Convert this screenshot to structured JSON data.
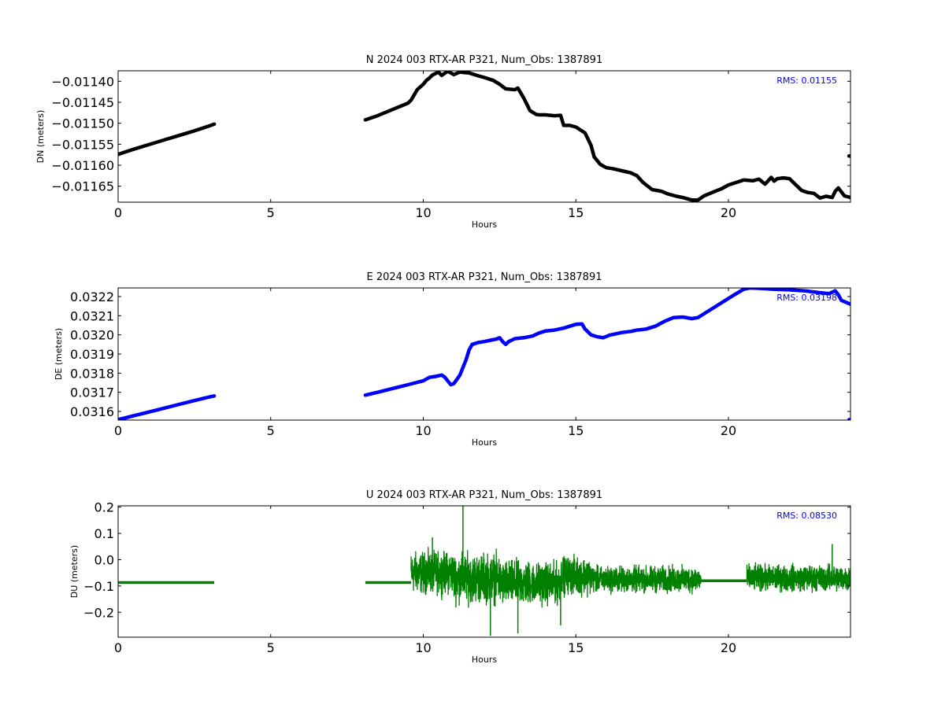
{
  "chart_data": [
    {
      "type": "line",
      "title": "N 2024 003 RTX-AR  P321, Num_Obs: 1387891",
      "xlabel": "Hours",
      "ylabel": "DN (meters)",
      "rms": "RMS:  0.01155",
      "color": "#000000",
      "xlim": [
        0,
        24
      ],
      "ylim": [
        -0.011688,
        -0.011375
      ],
      "xticks": [
        0,
        5,
        10,
        15,
        20
      ],
      "yticks": [
        -0.0114,
        -0.01145,
        -0.0115,
        -0.01155,
        -0.0116,
        -0.01165
      ],
      "ytick_labels": [
        "−0.01140",
        "−0.01145",
        "−0.01150",
        "−0.01155",
        "−0.01160",
        "−0.01165"
      ],
      "grid": false,
      "series": [
        {
          "x": [
            0.0,
            0.5,
            1.0,
            1.5,
            2.0,
            2.5,
            3.0,
            3.15
          ],
          "y": [
            -0.011574,
            -0.011562,
            -0.011551,
            -0.01154,
            -0.011529,
            -0.011518,
            -0.011506,
            -0.011502
          ]
        },
        {
          "x": [
            8.1,
            8.5,
            9.0,
            9.5,
            9.6,
            9.8,
            10.0,
            10.1,
            10.2,
            10.3,
            10.5,
            10.6,
            10.8,
            11.0,
            11.2,
            11.5,
            11.8,
            12.0,
            12.3,
            12.5,
            12.7,
            13.0,
            13.1,
            13.3,
            13.5,
            13.7,
            13.8,
            14.0,
            14.3,
            14.5,
            14.6,
            14.8,
            15.0,
            15.3,
            15.5,
            15.6,
            15.8,
            16.0,
            16.2,
            16.5,
            16.8,
            17.0,
            17.2,
            17.5,
            17.8,
            18.0,
            18.3,
            18.5,
            18.8,
            19.0,
            19.2,
            19.5,
            19.8,
            20.0,
            20.3,
            20.5,
            20.8,
            21.0,
            21.2,
            21.4,
            21.5,
            21.6,
            21.8,
            22.0,
            22.2,
            22.4,
            22.6,
            22.8,
            23.0,
            23.2,
            23.4,
            23.5,
            23.6,
            23.8,
            24.0
          ],
          "y": [
            -0.011492,
            -0.011482,
            -0.011467,
            -0.011452,
            -0.011445,
            -0.01142,
            -0.011407,
            -0.011398,
            -0.011392,
            -0.011385,
            -0.011378,
            -0.011386,
            -0.011376,
            -0.011384,
            -0.011378,
            -0.01138,
            -0.011387,
            -0.011391,
            -0.011398,
            -0.011407,
            -0.011418,
            -0.01142,
            -0.011416,
            -0.011441,
            -0.01147,
            -0.011479,
            -0.01148,
            -0.01148,
            -0.011482,
            -0.011481,
            -0.011505,
            -0.011505,
            -0.011509,
            -0.011523,
            -0.011553,
            -0.01158,
            -0.011598,
            -0.011606,
            -0.011608,
            -0.011613,
            -0.011618,
            -0.011625,
            -0.011641,
            -0.011658,
            -0.011662,
            -0.011668,
            -0.011674,
            -0.011677,
            -0.011683,
            -0.011683,
            -0.011673,
            -0.011664,
            -0.011655,
            -0.011647,
            -0.01164,
            -0.011635,
            -0.011637,
            -0.011633,
            -0.011645,
            -0.011629,
            -0.011638,
            -0.011632,
            -0.01163,
            -0.011632,
            -0.011646,
            -0.01166,
            -0.011665,
            -0.011667,
            -0.011678,
            -0.011674,
            -0.011677,
            -0.011662,
            -0.011654,
            -0.011673,
            -0.011677
          ]
        },
        {
          "x": [
            23.95,
            24.0
          ],
          "y": [
            -0.011578,
            -0.011578
          ]
        }
      ]
    },
    {
      "type": "line",
      "title": "E 2024 003 RTX-AR  P321, Num_Obs: 1387891",
      "xlabel": "Hours",
      "ylabel": "DE (meters)",
      "rms": "RMS:  0.03198",
      "color": "#0000ff",
      "xlim": [
        0,
        24
      ],
      "ylim": [
        0.031555,
        0.032245
      ],
      "xticks": [
        0,
        5,
        10,
        15,
        20
      ],
      "yticks": [
        0.0316,
        0.0317,
        0.0318,
        0.0319,
        0.032,
        0.0321,
        0.0322
      ],
      "ytick_labels": [
        "0.0316",
        "0.0317",
        "0.0318",
        "0.0319",
        "0.0320",
        "0.0321",
        "0.0322"
      ],
      "grid": false,
      "series": [
        {
          "x": [
            0.0,
            0.5,
            1.0,
            1.5,
            2.0,
            2.5,
            3.0,
            3.15
          ],
          "y": [
            0.031557,
            0.031577,
            0.031597,
            0.031617,
            0.031637,
            0.031657,
            0.031676,
            0.031681
          ]
        },
        {
          "x": [
            8.1,
            8.5,
            9.0,
            9.5,
            10.0,
            10.2,
            10.4,
            10.6,
            10.7,
            10.8,
            10.9,
            11.0,
            11.2,
            11.4,
            11.5,
            11.6,
            11.8,
            12.0,
            12.2,
            12.4,
            12.5,
            12.6,
            12.7,
            12.8,
            13.0,
            13.3,
            13.6,
            13.8,
            14.0,
            14.3,
            14.6,
            14.8,
            15.0,
            15.2,
            15.3,
            15.5,
            15.7,
            15.9,
            16.1,
            16.3,
            16.5,
            16.8,
            17.0,
            17.3,
            17.6,
            17.9,
            18.2,
            18.5,
            18.8,
            19.0,
            19.3,
            19.6,
            19.9,
            20.2,
            20.5,
            20.7,
            21.0,
            21.5,
            22.0,
            22.5,
            23.0,
            23.3,
            23.5,
            23.6,
            23.7,
            24.0
          ],
          "y": [
            0.031685,
            0.0317,
            0.03172,
            0.03174,
            0.03176,
            0.031778,
            0.031783,
            0.03179,
            0.03178,
            0.03176,
            0.03174,
            0.031745,
            0.03179,
            0.03187,
            0.03192,
            0.03195,
            0.03196,
            0.031965,
            0.031972,
            0.031978,
            0.031985,
            0.031965,
            0.03195,
            0.031965,
            0.03198,
            0.031985,
            0.031995,
            0.03201,
            0.03202,
            0.032025,
            0.032035,
            0.032045,
            0.032055,
            0.032057,
            0.03203,
            0.032,
            0.03199,
            0.031985,
            0.031998,
            0.032005,
            0.032012,
            0.032018,
            0.032025,
            0.03203,
            0.032045,
            0.03207,
            0.03209,
            0.032093,
            0.032085,
            0.03209,
            0.03212,
            0.03215,
            0.03218,
            0.03221,
            0.032238,
            0.032245,
            0.032243,
            0.032238,
            0.032235,
            0.03223,
            0.03222,
            0.032215,
            0.03223,
            0.03221,
            0.03218,
            0.03216
          ]
        },
        {
          "x": [
            23.95,
            24.0
          ],
          "y": [
            0.031557,
            0.031557
          ]
        }
      ]
    },
    {
      "type": "line",
      "title": "U 2024 003 RTX-AR  P321, Num_Obs: 1387891",
      "xlabel": "Hours",
      "ylabel": "DU (meters)",
      "rms": "RMS:  0.08530",
      "color": "#008000",
      "xlim": [
        0,
        24
      ],
      "ylim": [
        -0.295,
        0.205
      ],
      "xticks": [
        0,
        5,
        10,
        15,
        20
      ],
      "yticks": [
        0.2,
        0.1,
        0.0,
        -0.1,
        -0.2
      ],
      "ytick_labels": [
        "0.2",
        "0.1",
        "0.0",
        "−0.1",
        "−0.2"
      ],
      "grid": false,
      "flat_segments": [
        {
          "x": [
            0.0,
            3.15
          ],
          "y": -0.087
        },
        {
          "x": [
            8.1,
            9.6
          ],
          "y": -0.087
        },
        {
          "x": [
            19.1,
            20.6
          ],
          "y": -0.08
        }
      ],
      "noisy_segments": [
        {
          "x": [
            9.6,
            11.0
          ],
          "mean": -0.05,
          "amp": 0.11
        },
        {
          "x": [
            11.0,
            12.5
          ],
          "mean": -0.07,
          "amp": 0.13
        },
        {
          "x": [
            12.5,
            13.5
          ],
          "mean": -0.09,
          "amp": 0.12
        },
        {
          "x": [
            13.5,
            14.5
          ],
          "mean": -0.09,
          "amp": 0.11
        },
        {
          "x": [
            14.5,
            15.5
          ],
          "mean": -0.06,
          "amp": 0.1
        },
        {
          "x": [
            15.5,
            19.1
          ],
          "mean": -0.075,
          "amp": 0.07
        },
        {
          "x": [
            20.6,
            24.0
          ],
          "mean": -0.07,
          "amp": 0.07
        }
      ],
      "spikes": [
        {
          "x": 11.3,
          "y": 0.205
        },
        {
          "x": 12.2,
          "y": -0.29
        },
        {
          "x": 13.1,
          "y": -0.28
        },
        {
          "x": 10.3,
          "y": 0.085
        },
        {
          "x": 14.5,
          "y": -0.25
        },
        {
          "x": 23.4,
          "y": 0.06
        }
      ]
    }
  ]
}
